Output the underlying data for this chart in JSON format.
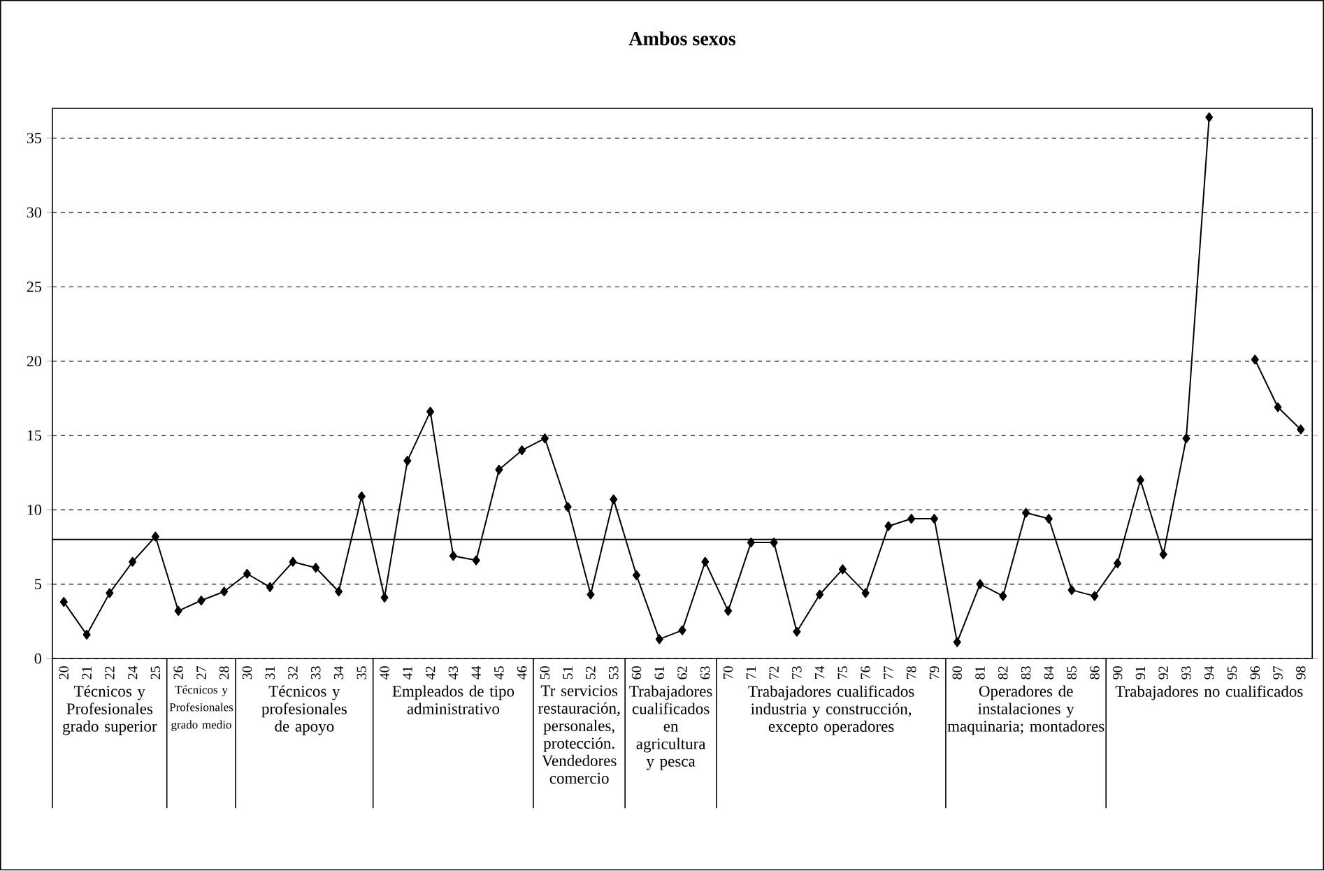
{
  "chart_data": {
    "type": "line",
    "title": "Ambos sexos",
    "categories": [
      "20",
      "21",
      "22",
      "24",
      "25",
      "26",
      "27",
      "28",
      "30",
      "31",
      "32",
      "33",
      "34",
      "35",
      "40",
      "41",
      "42",
      "43",
      "44",
      "45",
      "46",
      "50",
      "51",
      "52",
      "53",
      "60",
      "61",
      "62",
      "63",
      "70",
      "71",
      "72",
      "73",
      "74",
      "75",
      "76",
      "77",
      "78",
      "79",
      "80",
      "81",
      "82",
      "83",
      "84",
      "85",
      "86",
      "90",
      "91",
      "92",
      "93",
      "94",
      "95",
      "96",
      "97",
      "98"
    ],
    "series": [
      {
        "color": "#000000",
        "values": [
          3.8,
          1.6,
          4.4,
          6.5,
          8.2,
          3.2,
          3.9,
          4.5,
          5.7,
          4.8,
          6.5,
          6.1,
          4.5,
          10.9,
          4.1,
          13.3,
          16.6,
          6.9,
          6.6,
          12.7,
          14.0,
          14.8,
          10.2,
          4.3,
          10.7,
          5.6,
          1.3,
          1.9,
          6.5,
          3.2,
          7.8,
          7.8,
          1.8,
          4.3,
          6.0,
          4.4,
          8.9,
          9.4,
          9.4,
          1.1,
          5.0,
          4.2,
          9.8,
          9.4,
          4.6,
          4.2,
          6.4,
          12.0,
          7.0,
          14.8,
          36.4,
          null,
          20.1,
          16.9,
          15.4
        ]
      }
    ],
    "ylim": [
      0,
      37
    ],
    "yticks": [
      0,
      5,
      10,
      15,
      20,
      25,
      30,
      35
    ],
    "grid": "y",
    "marker": "diamond",
    "line_style": "solid",
    "ref_lines": [
      {
        "axis": "y",
        "value": 8,
        "color": "#000000"
      }
    ],
    "annotations": [
      "Técnicos y Profesionales grado superior",
      "Técnicos y Profesionales grado medio",
      "Técnicos y profesionales de apoyo",
      "Empleados de tipo administrativo",
      "Tr servicios restauración, personales, protección. Vendedores comercio",
      "Trabajadores cualificados en agricultura y pesca",
      "Trabajadores cualificados industria y construcción, excepto operadores",
      "Operadores de instalaciones y maquinaria; montadores",
      "Trabajadores no cualificados"
    ]
  }
}
